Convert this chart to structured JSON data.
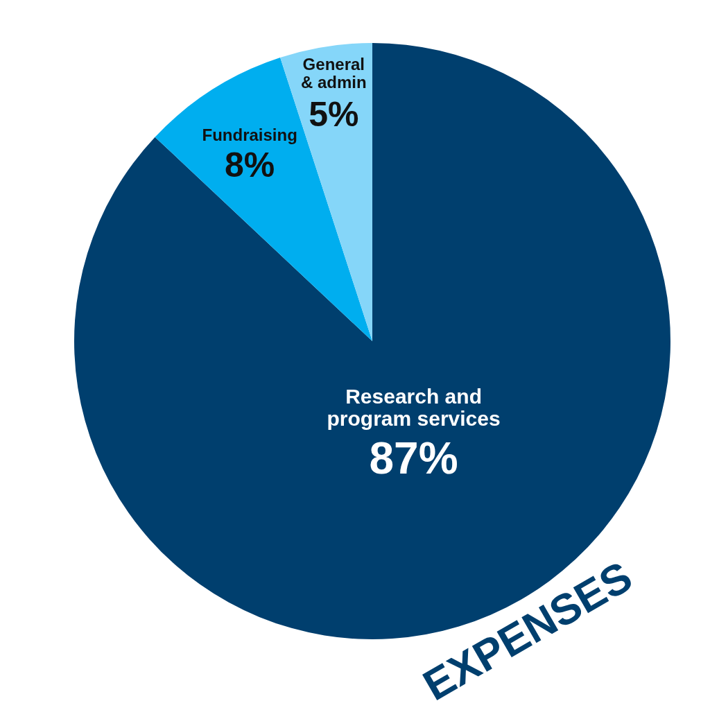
{
  "chart_data": {
    "type": "pie",
    "title": "EXPENSES",
    "categories": [
      "Research and\nprogram services",
      "Fundraising",
      "General\n& admin"
    ],
    "values": [
      87,
      8,
      5
    ],
    "colors": [
      "#003f6e",
      "#00aeef",
      "#85d6f9"
    ],
    "value_labels": [
      "87%",
      "8%",
      "5%"
    ]
  }
}
